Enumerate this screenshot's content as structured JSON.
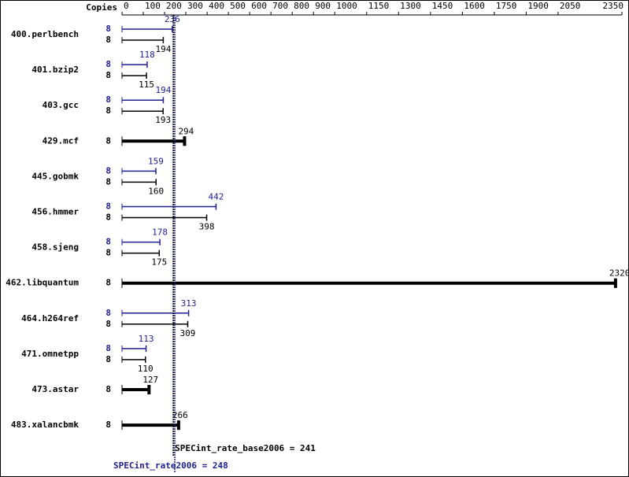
{
  "chart_data": {
    "type": "bar",
    "copies_label": "Copies",
    "categories": [
      "400.perlbench",
      "401.bzip2",
      "403.gcc",
      "429.mcf",
      "445.gobmk",
      "456.hmmer",
      "458.sjeng",
      "462.libquantum",
      "464.h264ref",
      "471.omnetpp",
      "473.astar",
      "483.xalancbmk"
    ],
    "series": [
      {
        "color": "#1f1f8f",
        "copies": [
          8,
          8,
          8,
          null,
          8,
          8,
          8,
          null,
          8,
          8,
          null,
          null
        ],
        "values": [
          236,
          118,
          194,
          null,
          159,
          442,
          178,
          null,
          313,
          113,
          null,
          null
        ]
      },
      {
        "color": "#000000",
        "copies": [
          8,
          8,
          8,
          8,
          8,
          8,
          8,
          8,
          8,
          8,
          8,
          8
        ],
        "values": [
          194,
          115,
          193,
          294,
          160,
          398,
          175,
          2320,
          309,
          110,
          127,
          266
        ]
      }
    ],
    "xlim": [
      0,
      2350
    ],
    "xticks": [
      0,
      100,
      200,
      300,
      400,
      500,
      600,
      700,
      800,
      900,
      1000,
      1150,
      1300,
      1450,
      1600,
      1750,
      1900,
      2050,
      2350
    ],
    "reference_lines": [
      {
        "label": "SPECint_rate_base2006 = 241",
        "value": 241,
        "color": "#000000"
      },
      {
        "label": "SPECint_rate2006 = 248",
        "value": 248,
        "color": "#1f1f8f"
      }
    ]
  }
}
